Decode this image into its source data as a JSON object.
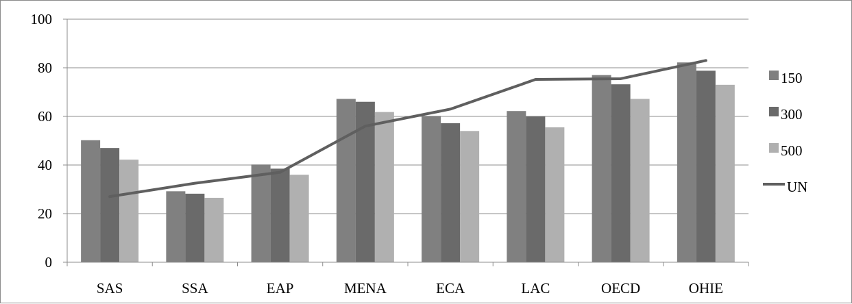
{
  "chart_data": {
    "type": "bar",
    "categories": [
      "SAS",
      "SSA",
      "EAP",
      "MENA",
      "ECA",
      "LAC",
      "OECD",
      "OHIE"
    ],
    "series": [
      {
        "name": "150",
        "kind": "bar",
        "color": "#808080",
        "values": [
          50.2,
          29.2,
          40.2,
          67.2,
          60.2,
          62.2,
          77.0,
          82.2
        ]
      },
      {
        "name": "300",
        "kind": "bar",
        "color": "#6a6a6a",
        "values": [
          47.0,
          28.2,
          38.5,
          66.0,
          57.2,
          60.0,
          73.2,
          78.8
        ]
      },
      {
        "name": "500",
        "kind": "bar",
        "color": "#b0b0b0",
        "values": [
          42.2,
          26.5,
          36.0,
          61.8,
          54.0,
          55.5,
          67.2,
          73.0
        ]
      },
      {
        "name": "UN",
        "kind": "line",
        "color": "#5f5f5f",
        "values": [
          27.0,
          32.5,
          37.0,
          56.0,
          63.0,
          75.2,
          75.5,
          83.0
        ]
      }
    ],
    "ylim": [
      0,
      100
    ],
    "yticks": [
      0,
      20,
      40,
      60,
      80,
      100
    ],
    "grid": true,
    "legend_position": "right",
    "title": "",
    "xlabel": "",
    "ylabel": ""
  }
}
